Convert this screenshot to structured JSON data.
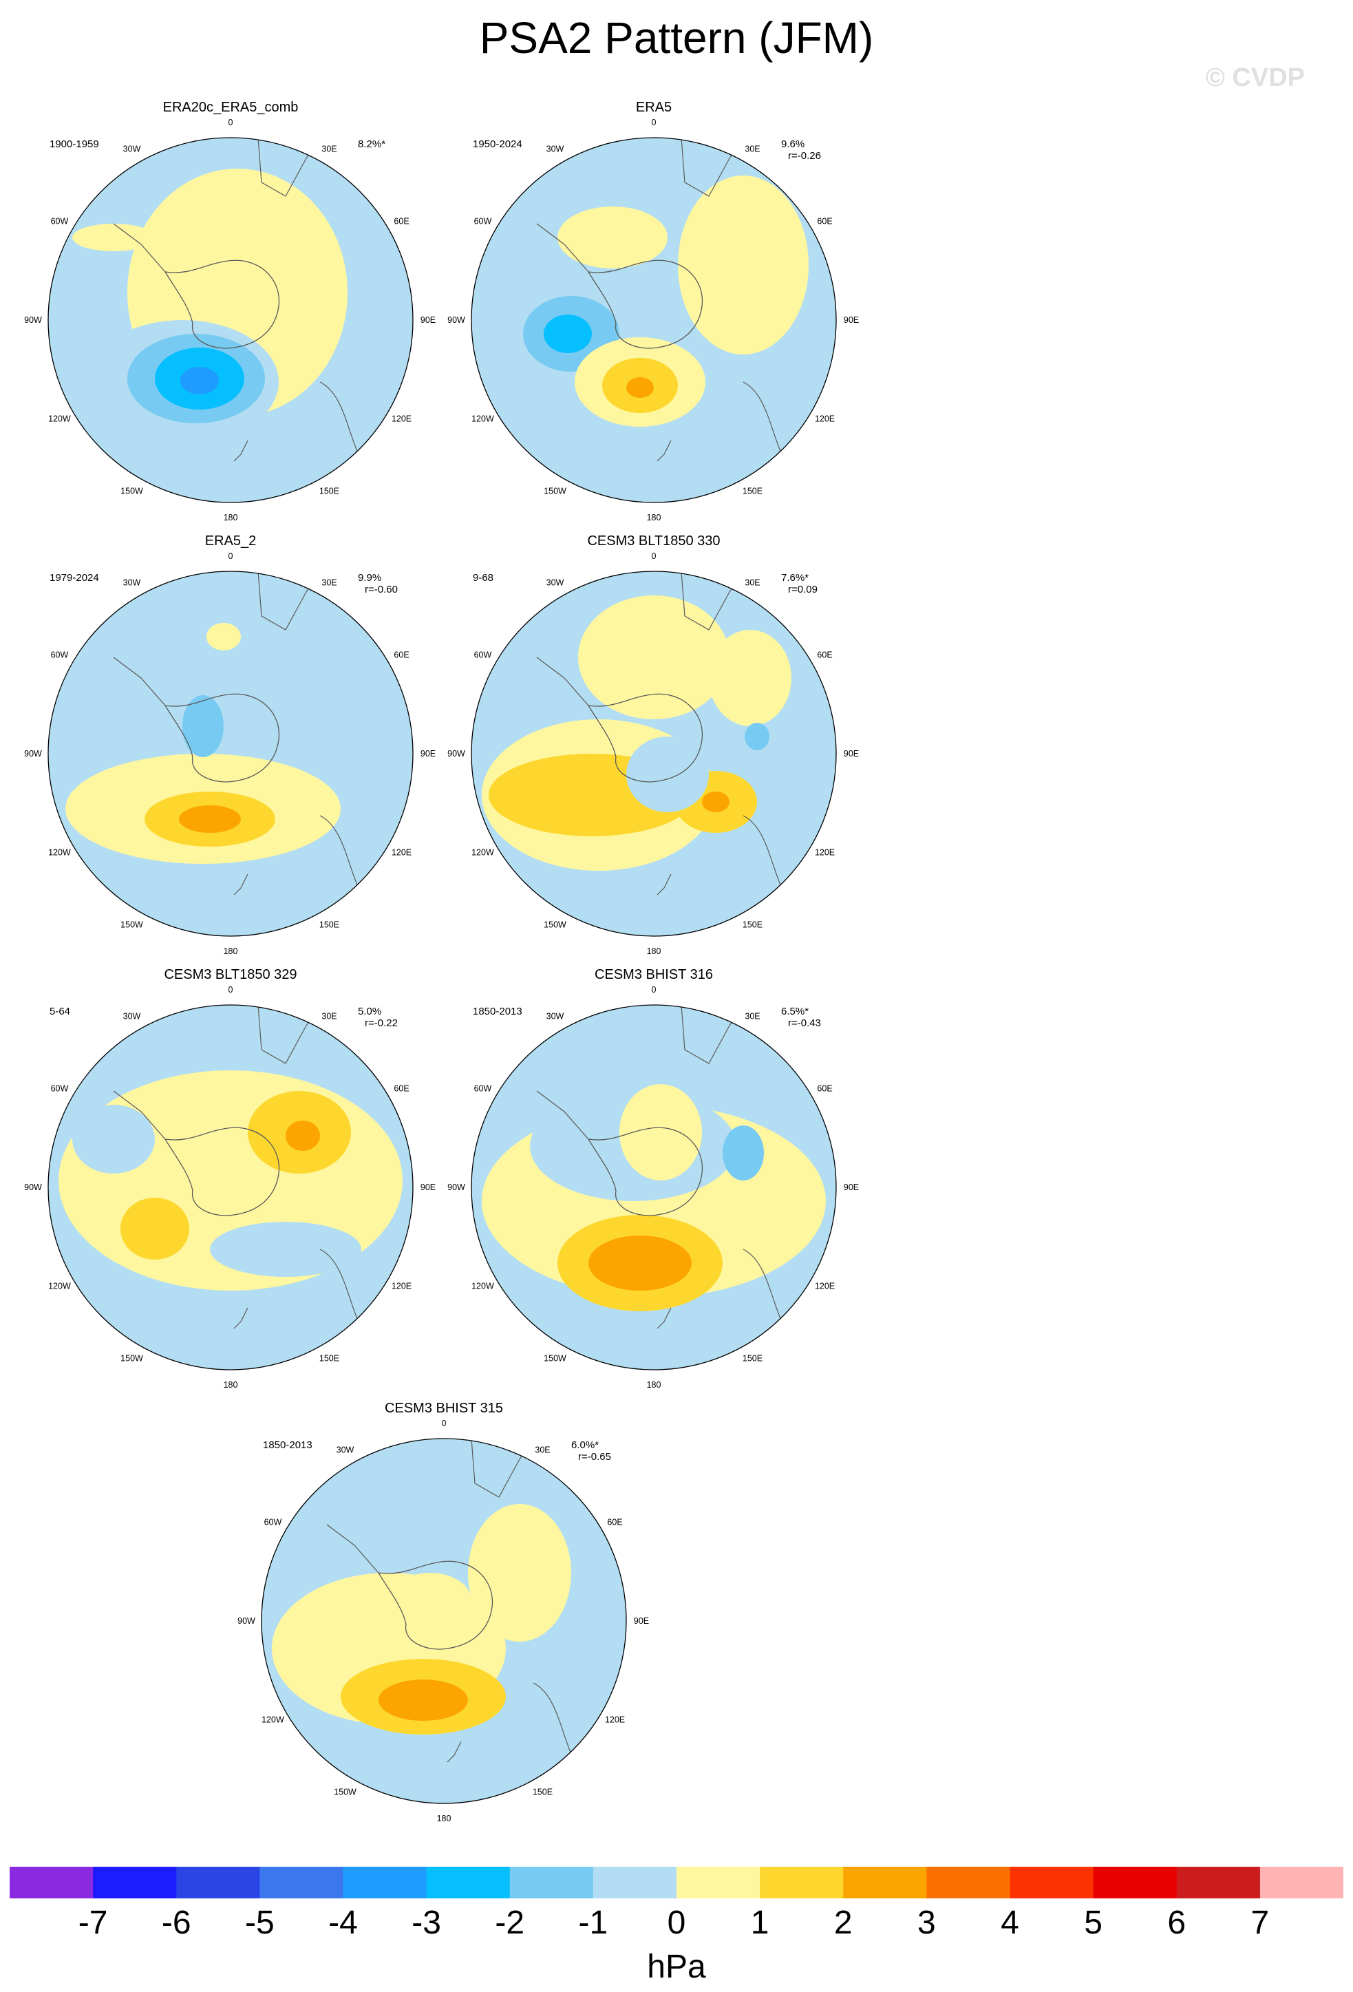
{
  "title": "PSA2 Pattern (JFM)",
  "credit": "© CVDP",
  "colors": {
    "ocean_neg1": "#b3ddf2",
    "land_border": "#5a5a5a"
  },
  "lon_labels": [
    "0",
    "30E",
    "60E",
    "90E",
    "120E",
    "150E",
    "180",
    "150W",
    "120W",
    "90W",
    "60W",
    "30W"
  ],
  "panels": [
    {
      "name": "ERA20c_ERA5_comb",
      "period": "1900-1959",
      "pct": "8.2%*",
      "r": ""
    },
    {
      "name": "ERA5",
      "period": "1950-2024",
      "pct": "9.6%",
      "r": "r=-0.26"
    },
    {
      "name": "ERA5_2",
      "period": "1979-2024",
      "pct": "9.9%",
      "r": "r=-0.60"
    },
    {
      "name": "CESM3 BLT1850 330",
      "period": "9-68",
      "pct": "7.6%*",
      "r": "r=0.09"
    },
    {
      "name": "CESM3 BLT1850 329",
      "period": "5-64",
      "pct": "5.0%",
      "r": "r=-0.22"
    },
    {
      "name": "CESM3 BHIST 316",
      "period": "1850-2013",
      "pct": "6.5%*",
      "r": "r=-0.43"
    },
    {
      "name": "CESM3 BHIST 315",
      "period": "1850-2013",
      "pct": "6.0%*",
      "r": "r=-0.65"
    }
  ],
  "colorbar": {
    "unit": "hPa",
    "labels": [
      "-7",
      "-6",
      "-5",
      "-4",
      "-3",
      "-2",
      "-1",
      "0",
      "1",
      "2",
      "3",
      "4",
      "5",
      "6",
      "7"
    ],
    "colors": [
      "#8a2be2",
      "#1c1cff",
      "#2a44e6",
      "#3b78ee",
      "#1f9cff",
      "#06bfff",
      "#77caf2",
      "#b3ddf2",
      "#fff7a0",
      "#fdd72d",
      "#fca400",
      "#fc7000",
      "#fc3200",
      "#e80000",
      "#cc1c1c",
      "#ffb3b3"
    ]
  }
}
